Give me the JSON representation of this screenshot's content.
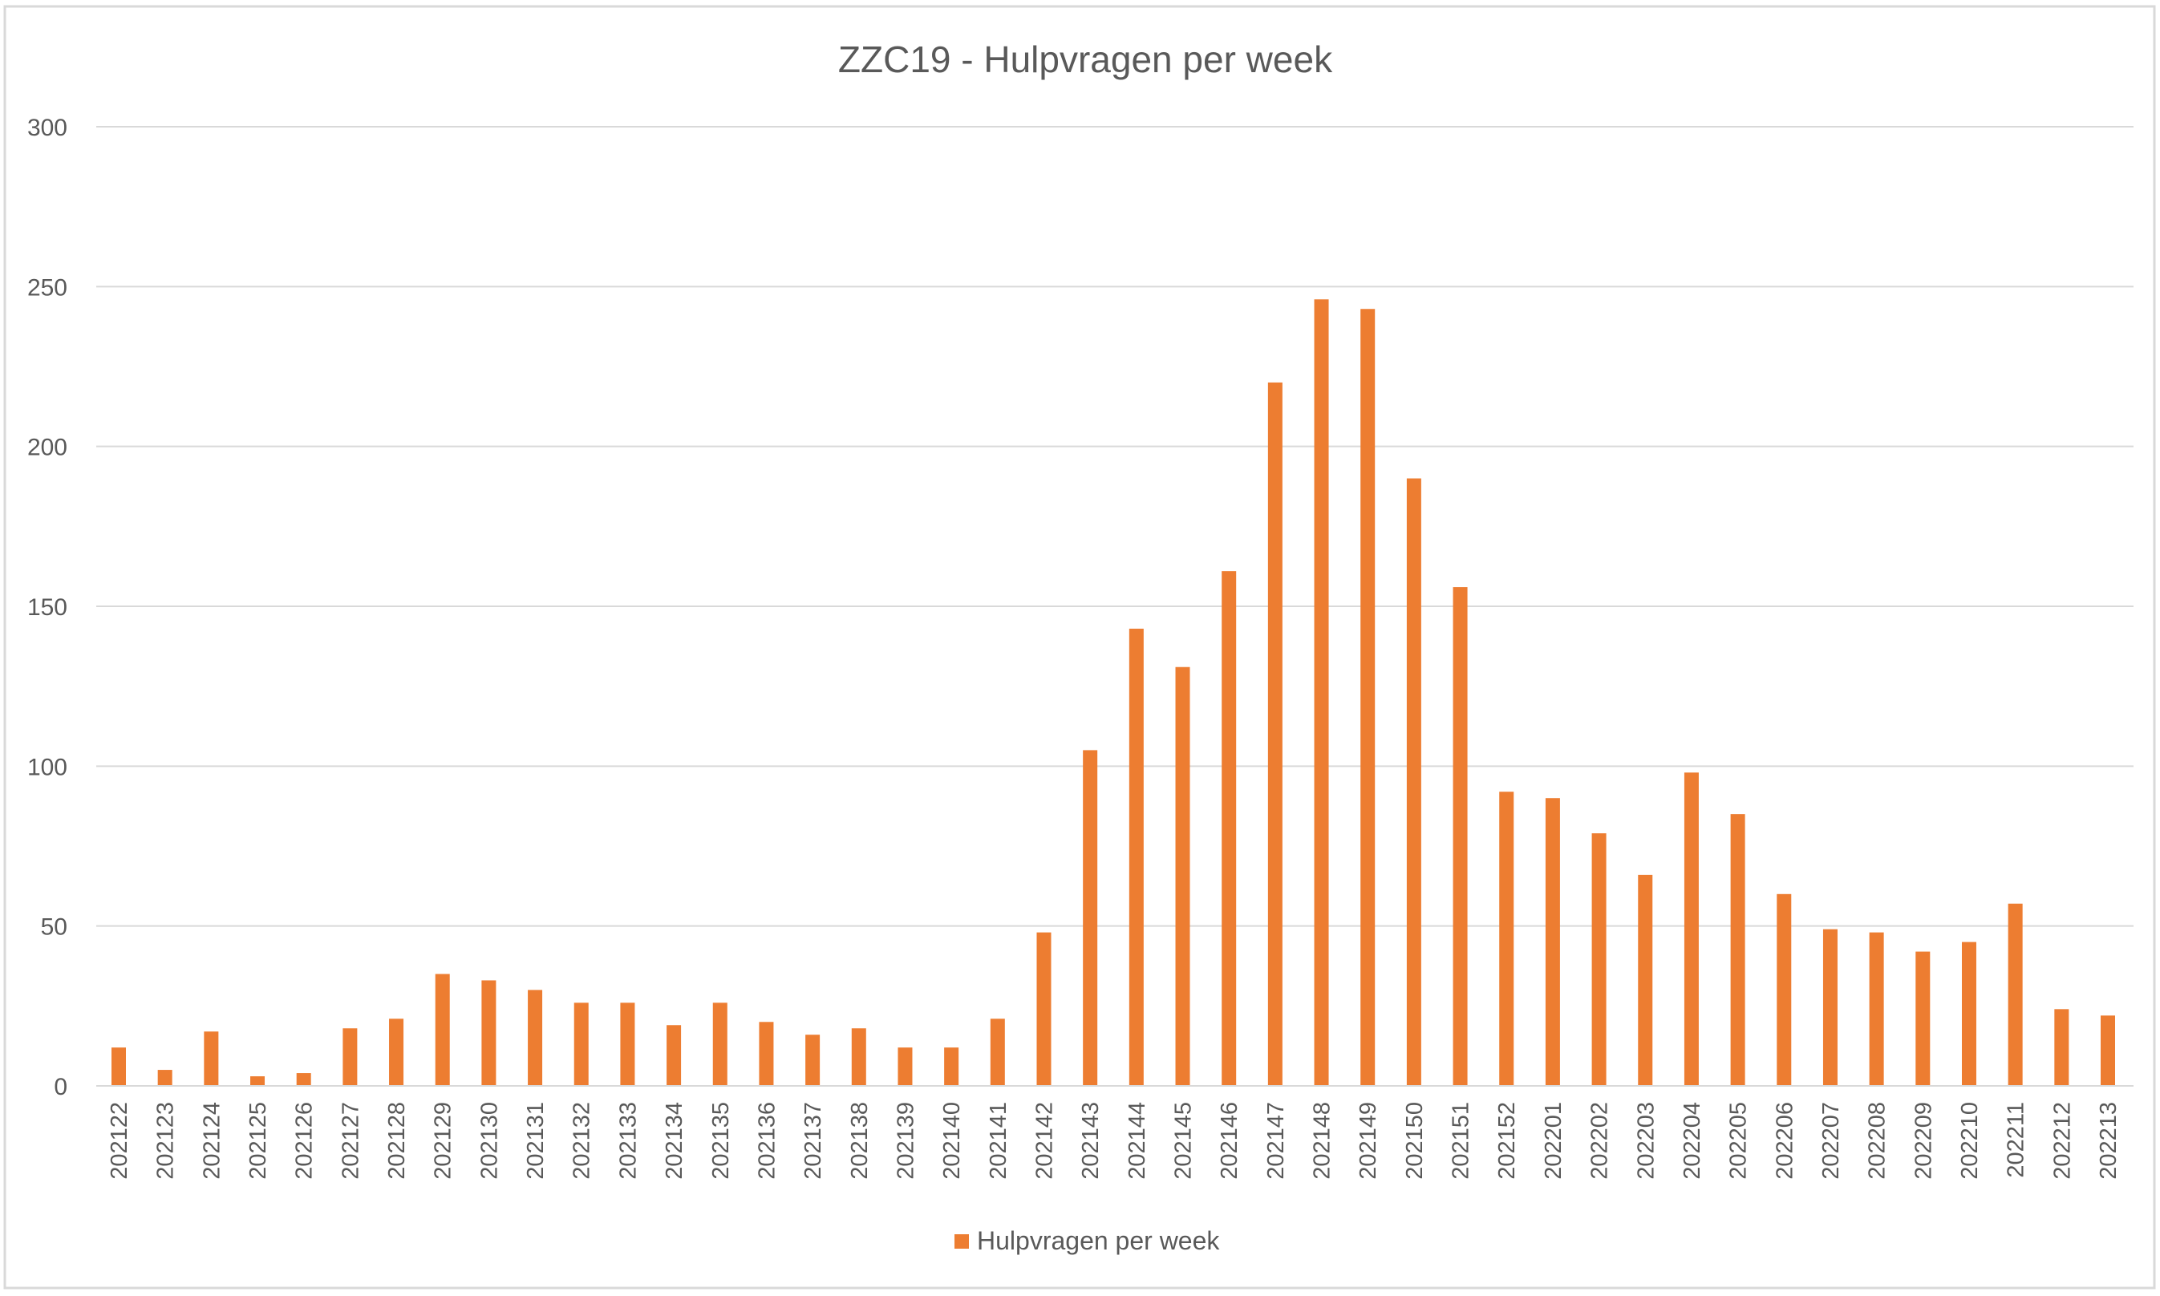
{
  "chart_data": {
    "type": "bar",
    "title": "ZZC19 - Hulpvragen per week",
    "xlabel": "",
    "ylabel": "",
    "ylim": [
      0,
      300
    ],
    "yticks": [
      "0",
      "50",
      "100",
      "150",
      "200",
      "250",
      "300"
    ],
    "grid": true,
    "legend_position": "bottom",
    "categories": [
      "202122",
      "202123",
      "202124",
      "202125",
      "202126",
      "202127",
      "202128",
      "202129",
      "202130",
      "202131",
      "202132",
      "202133",
      "202134",
      "202135",
      "202136",
      "202137",
      "202138",
      "202139",
      "202140",
      "202141",
      "202142",
      "202143",
      "202144",
      "202145",
      "202146",
      "202147",
      "202148",
      "202149",
      "202150",
      "202151",
      "202152",
      "202201",
      "202202",
      "202203",
      "202204",
      "202205",
      "202206",
      "202207",
      "202208",
      "202209",
      "202210",
      "202211",
      "202212",
      "202213"
    ],
    "series": [
      {
        "name": "Hulpvragen per week",
        "color": "#ED7D31",
        "values": [
          12,
          5,
          17,
          3,
          4,
          18,
          21,
          35,
          33,
          30,
          26,
          26,
          19,
          26,
          20,
          16,
          18,
          12,
          12,
          21,
          48,
          105,
          143,
          131,
          161,
          220,
          246,
          243,
          190,
          156,
          92,
          90,
          79,
          66,
          98,
          85,
          60,
          49,
          48,
          42,
          45,
          57,
          24,
          22
        ]
      }
    ]
  },
  "colors": {
    "bar": "#ED7D31",
    "grid": "#D9D9D9",
    "text": "#595959",
    "border": "#D9D9D9"
  }
}
